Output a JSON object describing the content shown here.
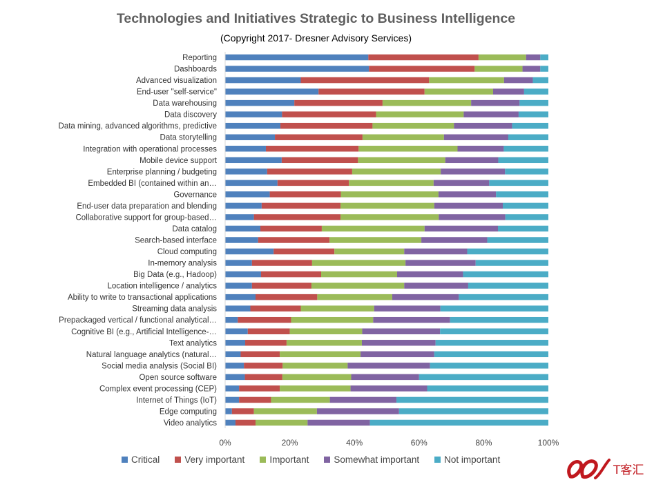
{
  "chart_data": {
    "type": "bar",
    "orientation": "horizontal",
    "stacking": "percent",
    "title": "Technologies and Initiatives Strategic to Business Intelligence",
    "subtitle": "(Copyright 2017- Dresner Advisory Services)",
    "categories": [
      "Reporting",
      "Dashboards",
      "Advanced visualization",
      "End-user \"self-service\"",
      "Data warehousing",
      "Data discovery",
      "Data mining, advanced algorithms, predictive",
      "Data storytelling",
      "Integration with operational processes",
      "Mobile device support",
      "Enterprise planning / budgeting",
      "Embedded BI (contained within an…",
      "Governance",
      "End-user data preparation and blending",
      "Collaborative support for group-based…",
      "Data catalog",
      "Search-based interface",
      "Cloud computing",
      "In-memory analysis",
      "Big Data (e.g., Hadoop)",
      "Location intelligence / analytics",
      "Ability to write to transactional applications",
      "Streaming data analysis",
      "Prepackaged vertical / functional analytical…",
      "Cognitive BI (e.g., Artificial Intelligence-…",
      "Text analytics",
      "Natural language analytics (natural…",
      "Social media analysis (Social BI)",
      "Open source software",
      "Complex event processing (CEP)",
      "Internet of Things (IoT)",
      "Edge computing",
      "Video analytics"
    ],
    "series": [
      {
        "name": "Critical",
        "color": "#4f81bd",
        "values": [
          44.3,
          44.5,
          23.4,
          28.9,
          21.4,
          17.6,
          17.1,
          15.4,
          12.6,
          17.5,
          13.0,
          16.2,
          13.8,
          11.3,
          8.9,
          10.9,
          10.2,
          15.0,
          8.3,
          11.1,
          8.3,
          9.4,
          7.8,
          3.9,
          7.0,
          6.2,
          4.8,
          5.8,
          6.1,
          4.3,
          4.3,
          2.1,
          3.2
        ]
      },
      {
        "name": "Very important",
        "color": "#c0504d",
        "values": [
          34.1,
          32.7,
          39.7,
          32.8,
          27.3,
          29.1,
          28.5,
          27.1,
          28.7,
          23.6,
          26.3,
          22.1,
          22.0,
          24.4,
          26.8,
          19.0,
          22.1,
          18.8,
          18.6,
          18.6,
          18.4,
          19.1,
          15.6,
          16.5,
          13.0,
          12.8,
          12.1,
          12.0,
          11.6,
          12.6,
          9.9,
          6.8,
          6.2
        ]
      },
      {
        "name": "Important",
        "color": "#9bbb59",
        "values": [
          14.7,
          14.8,
          23.2,
          21.2,
          27.4,
          27.1,
          25.2,
          25.2,
          30.6,
          27.0,
          27.4,
          26.2,
          30.2,
          29.0,
          30.4,
          31.8,
          28.4,
          21.6,
          28.9,
          23.5,
          28.7,
          23.2,
          22.7,
          25.4,
          22.4,
          23.3,
          25.0,
          20.1,
          21.3,
          21.9,
          18.2,
          19.5,
          16.1
        ]
      },
      {
        "name": "Somewhat important",
        "color": "#8064a2",
        "values": [
          4.4,
          5.5,
          8.9,
          9.6,
          15.0,
          17.0,
          18.0,
          19.9,
          14.3,
          16.4,
          19.9,
          17.2,
          17.8,
          21.2,
          20.6,
          22.7,
          20.4,
          19.5,
          21.7,
          20.4,
          19.8,
          20.6,
          20.5,
          23.8,
          24.1,
          22.8,
          22.8,
          25.5,
          21.0,
          23.7,
          20.6,
          25.4,
          19.3
        ]
      },
      {
        "name": "Not important",
        "color": "#4bacc6",
        "values": [
          2.5,
          2.5,
          4.8,
          7.5,
          8.9,
          9.2,
          11.2,
          12.4,
          13.8,
          15.5,
          13.4,
          18.3,
          16.2,
          14.1,
          13.3,
          15.6,
          18.9,
          25.1,
          22.5,
          26.4,
          24.8,
          27.7,
          33.4,
          30.4,
          33.5,
          34.9,
          35.3,
          36.6,
          40.0,
          37.5,
          47.0,
          46.2,
          55.2
        ]
      }
    ],
    "x_ticks": [
      "0%",
      "20%",
      "40%",
      "60%",
      "80%",
      "100%"
    ],
    "xlim": [
      0,
      100
    ],
    "grid": false,
    "legend_position": "bottom"
  },
  "watermark": {
    "text": "T客汇",
    "color": "#c0181e"
  }
}
